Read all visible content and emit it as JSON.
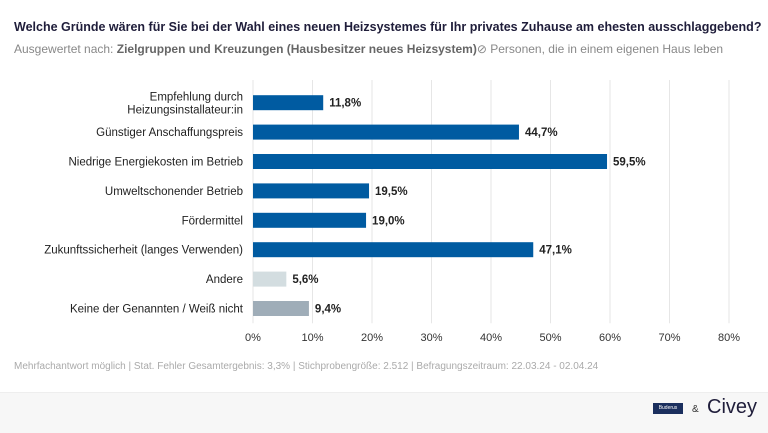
{
  "header": {
    "title": "Welche Gründe wären für Sie bei der Wahl eines neuen Heizsystemes für Ihr privates Zuhause am ehesten ausschlaggebend?",
    "eval_prefix": "Ausgewertet nach:",
    "eval_group": "Zielgruppen und Kreuzungen (Hausbesitzer neues Heizsystem)",
    "filter_icon": "no-entry-icon",
    "filter": "Personen, die in einem eigenen Haus leben"
  },
  "chart_data": {
    "type": "bar",
    "orientation": "horizontal",
    "categories": [
      "Empfehlung durch Heizungsinstallateur:in",
      "Günstiger Anschaffungspreis",
      "Niedrige Energiekosten im Betrieb",
      "Umweltschonender Betrieb",
      "Fördermittel",
      "Zukunftssicherheit (langes Verwenden)",
      "Andere",
      "Keine der Genannten / Weiß nicht"
    ],
    "values": [
      11.8,
      44.7,
      59.5,
      19.5,
      19.0,
      47.1,
      5.6,
      9.4
    ],
    "data_labels": [
      "11,8%",
      "44,7%",
      "59,5%",
      "19,5%",
      "19,0%",
      "47,1%",
      "5,6%",
      "9,4%"
    ],
    "colors": [
      "#005ba1",
      "#005ba1",
      "#005ba1",
      "#005ba1",
      "#005ba1",
      "#005ba1",
      "#d3dde0",
      "#9fadb8"
    ],
    "xlim": [
      0,
      80
    ],
    "ticks": [
      "0%",
      "10%",
      "20%",
      "30%",
      "40%",
      "50%",
      "60%",
      "70%",
      "80%"
    ],
    "grid": true
  },
  "footer": {
    "note": "Mehrfachantwort möglich | Stat. Fehler Gesamtergebnis: 3,3% | Stichprobengröße: 2.512 | Befragungszeitraum: 22.03.24 - 02.04.24"
  },
  "branding": {
    "partner": "Buderus",
    "amp": "&",
    "brand": "Civey"
  }
}
